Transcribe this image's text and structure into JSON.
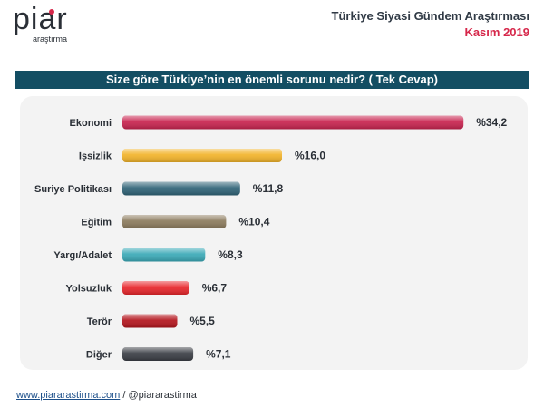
{
  "header": {
    "logo_text": "piar",
    "logo_subtext": "araştırma",
    "title": "Türkiye Siyasi Gündem Araştırması",
    "date": "Kasım 2019"
  },
  "question": "Size göre Türkiye’nin en önemli sorunu nedir? ( Tek Cevap)",
  "footer": {
    "website": "www.piararastirma.com",
    "separator": "/",
    "handle": "@piararastirma"
  },
  "chart_data": {
    "type": "bar",
    "orientation": "horizontal",
    "categories": [
      "Ekonomi",
      "İşsizlik",
      "Suriye Politikası",
      "Eğitim",
      "Yargı/Adalet",
      "Yolsuzluk",
      "Terör",
      "Diğer"
    ],
    "values": [
      34.2,
      16.0,
      11.8,
      10.4,
      8.3,
      6.7,
      5.5,
      7.1
    ],
    "value_labels": [
      "%34,2",
      "%16,0",
      "%11,8",
      "%10,4",
      "%8,3",
      "%6,7",
      "%5,5",
      "%7,1"
    ],
    "colors": [
      "#c8234f",
      "#f2b32a",
      "#2f6377",
      "#8b7a5c",
      "#3aa9b7",
      "#e8262b",
      "#b3141c",
      "#3a3d44"
    ],
    "xlim": [
      0,
      35
    ],
    "grid": false,
    "legend": "none"
  }
}
